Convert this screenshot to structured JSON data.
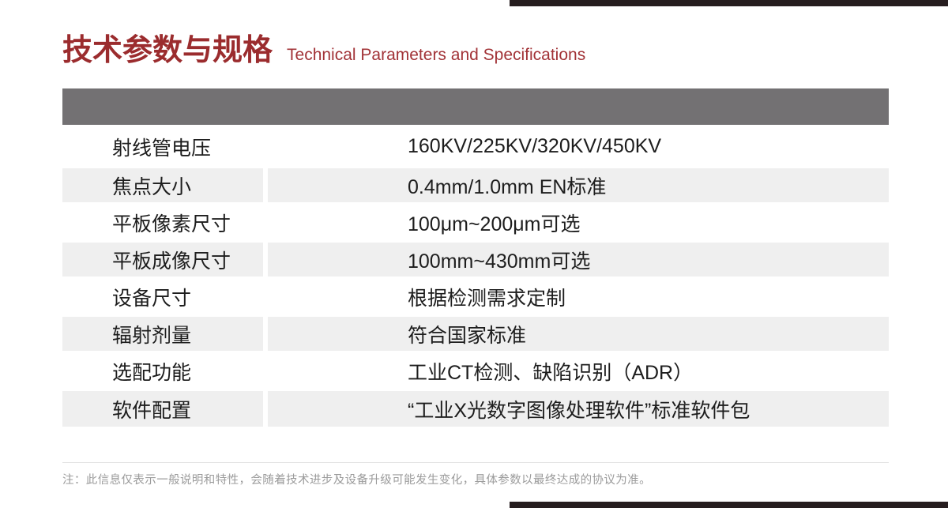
{
  "page": {
    "title_zh": "技术参数与规格",
    "title_en": "Technical Parameters and Specifications",
    "note": "注：此信息仅表示一般说明和特性，会随着技术进步及设备升级可能发生变化，具体参数以最终达成的协议为准。"
  },
  "table": {
    "rows": [
      {
        "label": "射线管电压",
        "value": "160KV/225KV/320KV/450KV"
      },
      {
        "label": "焦点大小",
        "value": "0.4mm/1.0mm EN标准"
      },
      {
        "label": "平板像素尺寸",
        "value": "100μm~200μm可选"
      },
      {
        "label": "平板成像尺寸",
        "value": "100mm~430mm可选"
      },
      {
        "label": "设备尺寸",
        "value": "根据检测需求定制"
      },
      {
        "label": "辐射剂量",
        "value": "符合国家标准"
      },
      {
        "label": "选配功能",
        "value": "工业CT检测、缺陷识别（ADR）"
      },
      {
        "label": "软件配置",
        "value": "“工业X光数字图像处理软件”标准软件包"
      }
    ]
  },
  "colors": {
    "accent_red": "#9B2C2E",
    "accent_red_light": "#A23337",
    "header_bar_gray": "#737173",
    "stripe_gray": "#EFEFEF",
    "text_dark": "#1D1D1D",
    "note_gray": "#9B9B9B",
    "divider_gray": "#E2E2E2",
    "corner_bar_dark": "#261D1F"
  }
}
